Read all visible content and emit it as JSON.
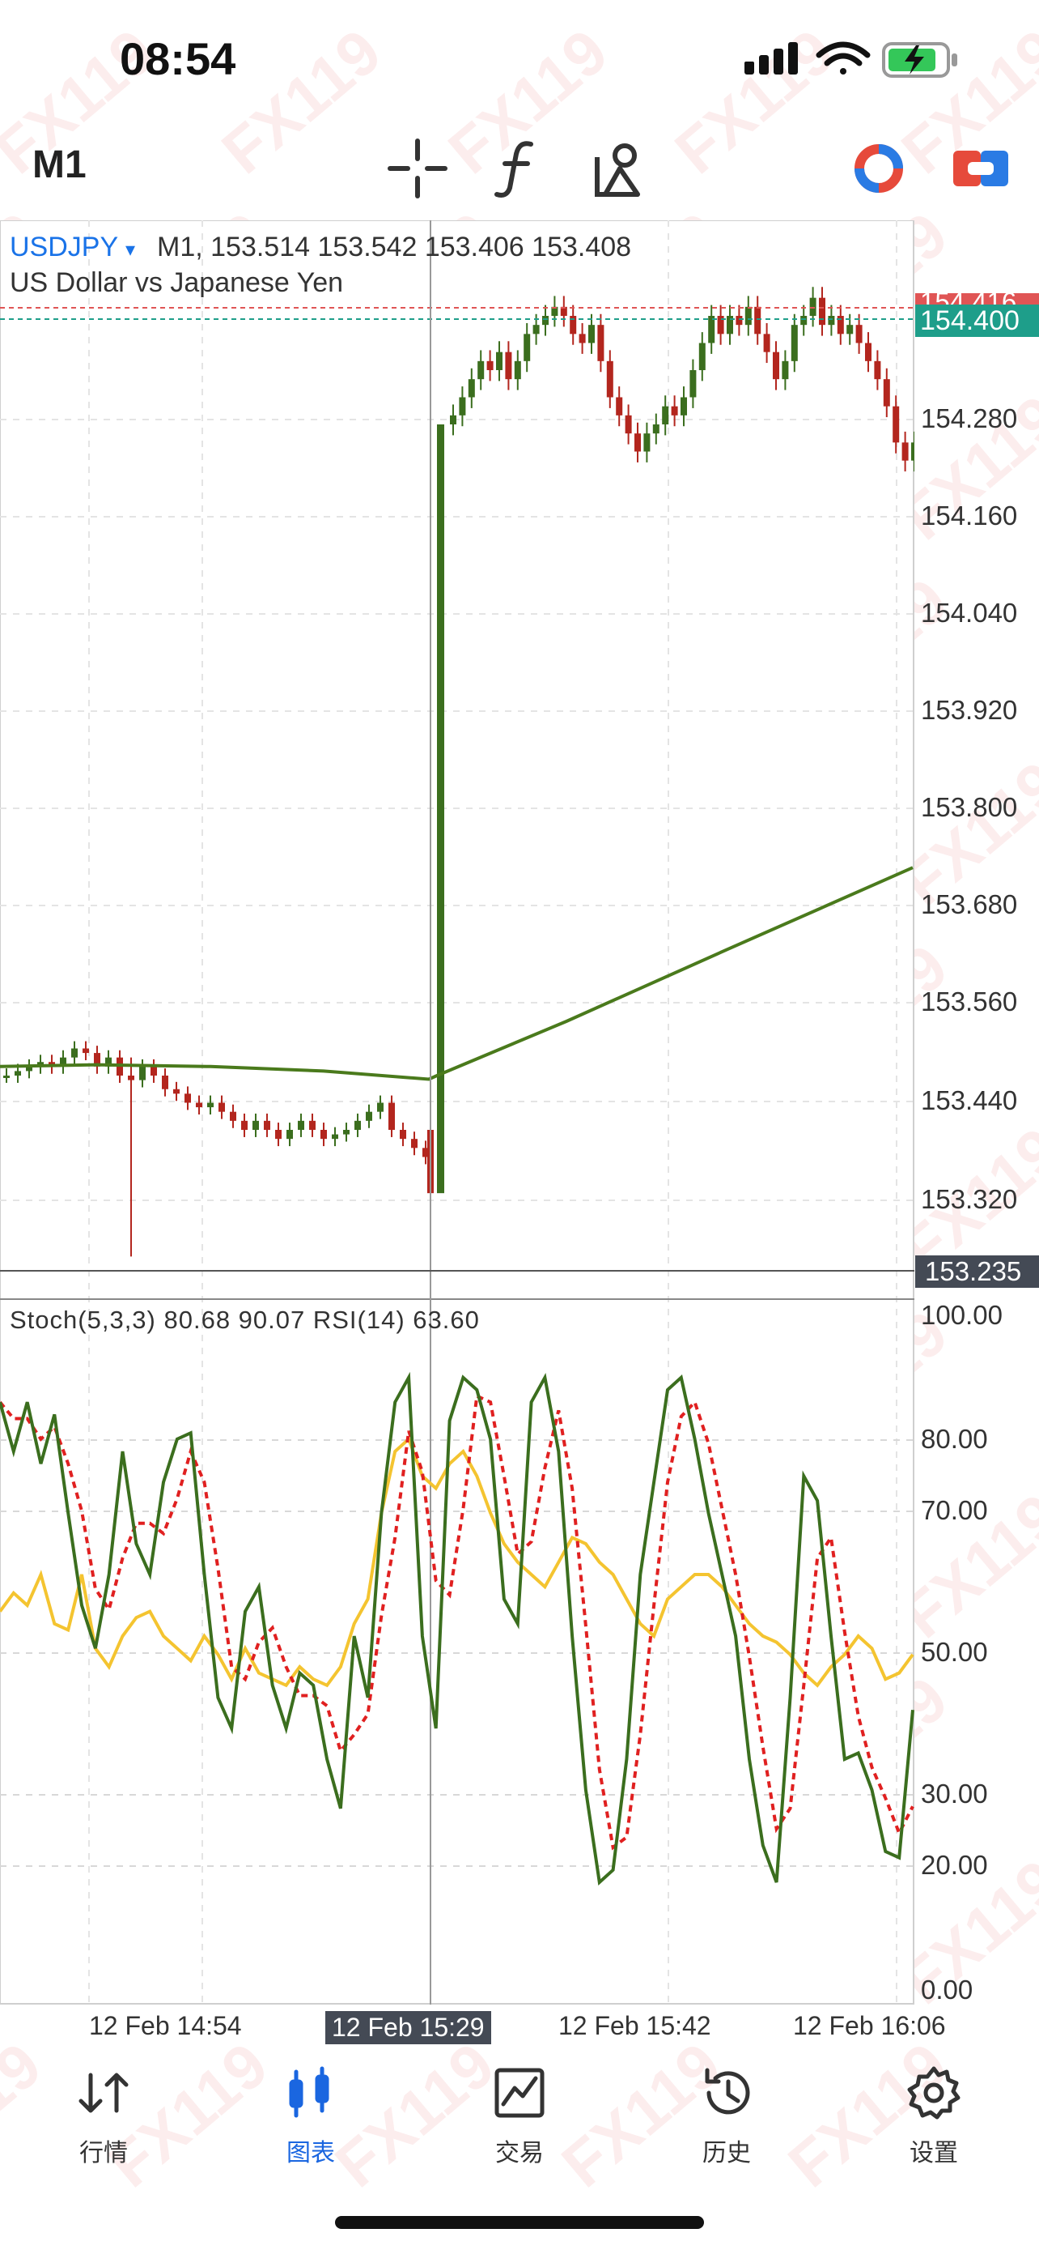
{
  "status_bar": {
    "time": "08:54"
  },
  "toolbar": {
    "timeframe": "M1",
    "tools": [
      "crosshair-icon",
      "indicators-icon",
      "objects-icon"
    ],
    "right_icons": [
      "signal-icon",
      "oneclick-trading-icon"
    ]
  },
  "chart_header": {
    "symbol": "USDJPY",
    "symbol_arrow": "▾",
    "ohlc_text": "M1, 153.514 153.542 153.406 153.408",
    "description": "US Dollar vs Japanese Yen"
  },
  "price_axis": {
    "ask_label": "154.416",
    "bid_label": "154.400",
    "levels": [
      "154.280",
      "154.160",
      "154.040",
      "153.920",
      "153.800",
      "153.680",
      "153.560",
      "153.440",
      "153.320"
    ],
    "cursor_label": "153.235"
  },
  "oscillator": {
    "info": "Stoch(5,3,3) 80.68 90.07 RSI(14) 63.60",
    "levels": [
      "100.00",
      "80.00",
      "70.00",
      "50.00",
      "30.00",
      "20.00",
      "0.00"
    ]
  },
  "time_axis": {
    "labels": [
      "12 Feb 14:54",
      "12 Feb 15:29",
      "12 Feb 15:42",
      "12 Feb 16:06"
    ],
    "highlighted_index": 1
  },
  "colors": {
    "bull": "#3b6e1e",
    "bear": "#b3261e",
    "ma": "#4a7a1c",
    "stoch_main": "#3b6e1e",
    "stoch_signal": "#e02020",
    "rsi": "#f4c430",
    "bid_line": "#1e9e8a",
    "ask_line": "#e05555",
    "accent": "#1a73e8"
  },
  "nav": {
    "items": [
      {
        "label": "行情",
        "icon": "quotes-icon"
      },
      {
        "label": "图表",
        "icon": "chart-icon"
      },
      {
        "label": "交易",
        "icon": "trade-icon"
      },
      {
        "label": "历史",
        "icon": "history-icon"
      },
      {
        "label": "设置",
        "icon": "settings-icon"
      }
    ],
    "active_index": 1
  },
  "watermark": "FX119"
}
